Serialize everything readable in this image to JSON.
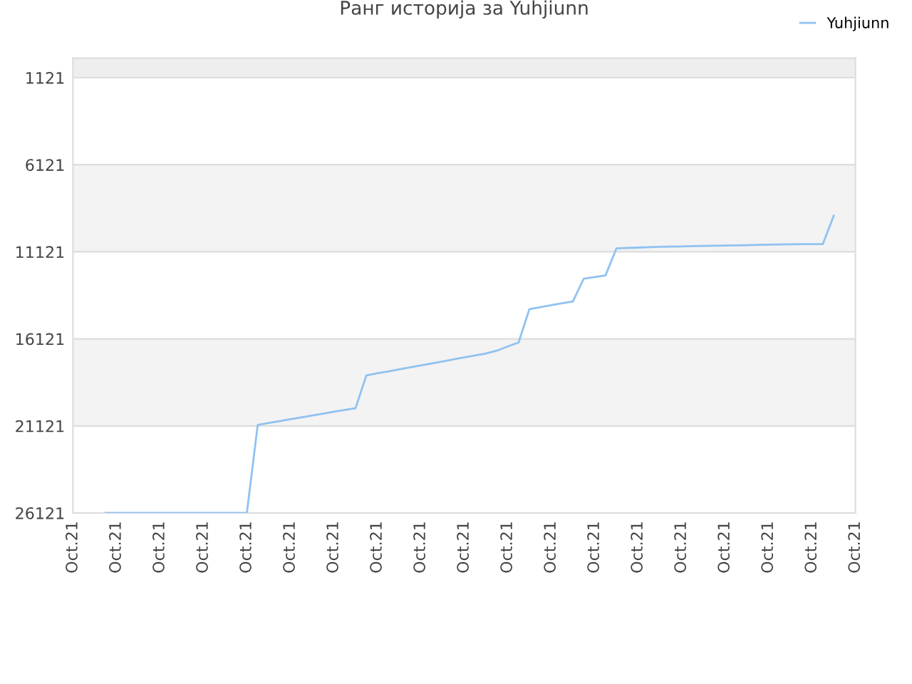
{
  "chart_data": {
    "type": "line",
    "title": "Ранг историја за Yuhjiunn",
    "categories": [
      "Oct.21",
      null,
      null,
      null,
      "Oct.21",
      null,
      null,
      null,
      "Oct.21",
      null,
      null,
      null,
      "Oct.21",
      null,
      null,
      null,
      "Oct.21",
      null,
      null,
      null,
      "Oct.21",
      null,
      null,
      null,
      "Oct.21",
      null,
      null,
      null,
      "Oct.21",
      null,
      null,
      null,
      "Oct.21",
      null,
      null,
      null,
      "Oct.21",
      null,
      null,
      null,
      "Oct.21",
      null,
      null,
      null,
      "Oct.21",
      null,
      null,
      null,
      "Oct.21",
      null,
      null,
      null,
      "Oct.21",
      null,
      null,
      null,
      "Oct.21",
      null,
      null,
      null,
      "Oct.21",
      null,
      null,
      null,
      "Oct.21",
      null,
      null,
      null,
      "Oct.21",
      null,
      null,
      null,
      "Oct.21"
    ],
    "series": [
      {
        "name": "Yuhjiunn",
        "color": "#90c2f0",
        "values": [
          null,
          null,
          null,
          26121,
          26121,
          26121,
          26121,
          26121,
          26121,
          26121,
          26121,
          26121,
          26121,
          26121,
          26121,
          26121,
          26121,
          21060,
          20950,
          20850,
          20740,
          20630,
          20520,
          20420,
          20310,
          20200,
          20100,
          18220,
          18100,
          17990,
          17870,
          17760,
          17650,
          17530,
          17420,
          17300,
          17190,
          17070,
          16960,
          16800,
          16560,
          16330,
          14410,
          14300,
          14190,
          14080,
          13970,
          12660,
          12570,
          12480,
          10930,
          10900,
          10880,
          10850,
          10830,
          10820,
          10810,
          10790,
          10780,
          10770,
          10760,
          10750,
          10740,
          10720,
          10710,
          10700,
          10690,
          10680,
          10680,
          10680,
          9050,
          null,
          null
        ]
      }
    ],
    "ylim": [
      26121,
      0
    ],
    "yticks": [
      1121,
      6121,
      11121,
      16121,
      21121,
      26121
    ],
    "bands": [
      {
        "axis": "y",
        "from": 0,
        "to": 1121,
        "color": "#eeeeee"
      },
      {
        "axis": "y",
        "from": 6121,
        "to": 11121,
        "color": "#f3f3f3"
      },
      {
        "axis": "y",
        "from": 16121,
        "to": 21121,
        "color": "#f3f3f3"
      }
    ],
    "grid": "y",
    "legend": "top right",
    "marker": "none",
    "line_style": "solid"
  }
}
